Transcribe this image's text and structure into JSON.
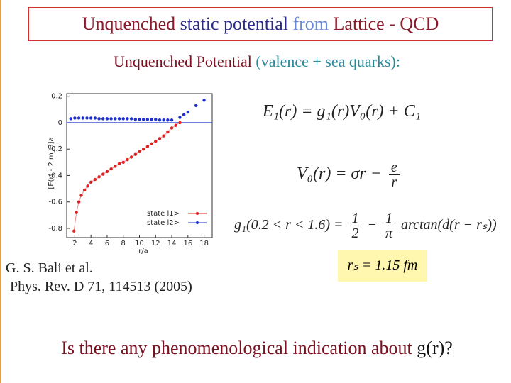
{
  "title": {
    "parts": [
      "Unquenched",
      "static potential",
      "from",
      "Lattice - QCD"
    ]
  },
  "subtitle": {
    "parts": [
      "Unquenched Potential",
      "(valence + sea quarks):"
    ]
  },
  "chart_data": {
    "type": "scatter",
    "xlabel": "r/a",
    "ylabel": "[E(r) - 2 m_B]a",
    "xlim": [
      1,
      19
    ],
    "ylim": [
      -0.87,
      0.22
    ],
    "xticks": [
      2,
      4,
      6,
      8,
      10,
      12,
      14,
      16,
      18
    ],
    "yticks": [
      -0.8,
      -0.6,
      -0.4,
      -0.2,
      0,
      0.2
    ],
    "reference_line": 0,
    "legend": "lower right",
    "series": [
      {
        "name": "state l1>",
        "color": "#e02020",
        "connect": true,
        "x": [
          1.9,
          2.2,
          2.5,
          2.8,
          3.2,
          3.6,
          4,
          4.5,
          5,
          5.5,
          6,
          6.5,
          7,
          7.5,
          8,
          8.5,
          9,
          9.5,
          10,
          10.5,
          11,
          11.5,
          12,
          12.5,
          13,
          13.5,
          14,
          14.5,
          15
        ],
        "values": [
          -0.82,
          -0.68,
          -0.6,
          -0.55,
          -0.51,
          -0.48,
          -0.45,
          -0.43,
          -0.41,
          -0.39,
          -0.37,
          -0.35,
          -0.33,
          -0.31,
          -0.3,
          -0.28,
          -0.26,
          -0.24,
          -0.22,
          -0.2,
          -0.18,
          -0.16,
          -0.14,
          -0.12,
          -0.1,
          -0.07,
          -0.04,
          -0.02,
          0.0
        ]
      },
      {
        "name": "state l2>",
        "color": "#2030d0",
        "connect": false,
        "x": [
          1.5,
          2,
          2.5,
          3,
          3.5,
          4,
          4.5,
          5,
          5.5,
          6,
          6.5,
          7,
          7.5,
          8,
          8.5,
          9,
          9.5,
          10,
          10.5,
          11,
          11.5,
          12,
          12.5,
          13,
          13.5,
          14,
          15,
          15.5,
          16,
          17,
          18
        ],
        "values": [
          0.03,
          0.035,
          0.035,
          0.035,
          0.035,
          0.035,
          0.035,
          0.03,
          0.03,
          0.03,
          0.03,
          0.03,
          0.03,
          0.03,
          0.03,
          0.03,
          0.025,
          0.025,
          0.025,
          0.025,
          0.025,
          0.025,
          0.02,
          0.02,
          0.02,
          0.02,
          0.04,
          0.06,
          0.08,
          0.13,
          0.17
        ]
      }
    ]
  },
  "equations": {
    "e1": "E₁(r) = g₁(r)V₀(r) + C₁",
    "v0": {
      "lhs": "V₀(r) = σr −",
      "num": "e",
      "den": "r"
    },
    "g1": {
      "lhs": "g₁(0.2 < r < 1.6) =",
      "num1": "1",
      "den1": "2",
      "minus": "−",
      "num2": "1",
      "den2": "π",
      "rhs": "arctan(d(r − rₛ))"
    },
    "rs": "rₛ = 1.15 fm"
  },
  "citation": [
    "G. S. Bali et al.",
    "Phys. Rev. D 71, 114513 (2005)"
  ],
  "question": {
    "parts": [
      "Is there any phenomenological indication about",
      "g(r)?"
    ]
  }
}
